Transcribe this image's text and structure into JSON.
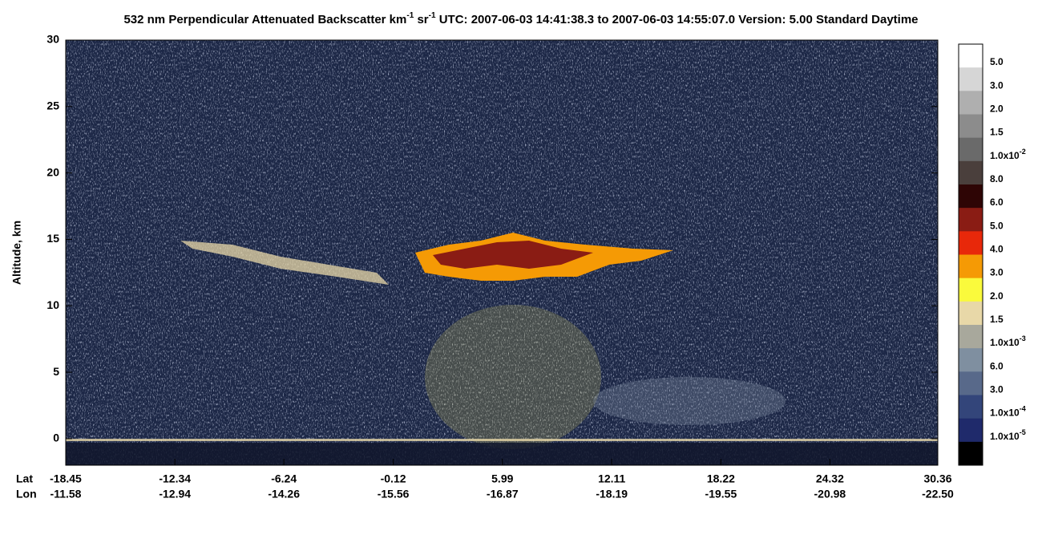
{
  "chart_data": {
    "type": "heatmap",
    "title": [
      "532 nm Perpendicular Attenuated Backscatter km",
      "-1",
      " sr",
      "-1",
      "  UTC: 2007-06-03 14:41:38.3 to 2007-06-03 14:55:07.0  Version: 5.00 Standard Daytime"
    ],
    "ylabel": "Altitude, km",
    "ylim": [
      -2,
      30
    ],
    "yticks": [
      0,
      5,
      10,
      15,
      20,
      25,
      30
    ],
    "xlim": [
      -18.45,
      30.36
    ],
    "xticks": [
      -18.45,
      -12.34,
      -6.24,
      -0.12,
      5.99,
      12.11,
      18.22,
      24.32,
      30.36
    ],
    "xrow_labels": [
      "Lat",
      "Lon"
    ],
    "lon_labels": [
      "-11.58",
      "-12.94",
      "-14.26",
      "-15.56",
      "-16.87",
      "-18.19",
      "-19.55",
      "-20.98",
      "-22.50"
    ],
    "colorbar": {
      "colors": [
        "#ffffff",
        "#d6d6d6",
        "#afafaf",
        "#8c8c8c",
        "#6a6a6a",
        "#4a3f3c",
        "#2e0505",
        "#8a1c14",
        "#e8280a",
        "#f59a05",
        "#fafa3c",
        "#e8d8a8",
        "#a8a89c",
        "#7f8fa0",
        "#58698a",
        "#33457a",
        "#1f2a6b",
        "#000000"
      ],
      "labels": [
        {
          "text": "5.0"
        },
        {
          "text": "3.0"
        },
        {
          "text": "2.0"
        },
        {
          "text": "1.5"
        },
        {
          "text": "1.0x10",
          "sup": "-2"
        },
        {
          "text": "8.0"
        },
        {
          "text": "6.0"
        },
        {
          "text": "5.0"
        },
        {
          "text": "4.0"
        },
        {
          "text": "3.0"
        },
        {
          "text": "2.0"
        },
        {
          "text": "1.5"
        },
        {
          "text": "1.0x10",
          "sup": "-3"
        },
        {
          "text": "6.0"
        },
        {
          "text": "3.0"
        },
        {
          "text": "1.0x10",
          "sup": "-4"
        },
        {
          "text": "1.0x10",
          "sup": "-5"
        }
      ]
    }
  }
}
